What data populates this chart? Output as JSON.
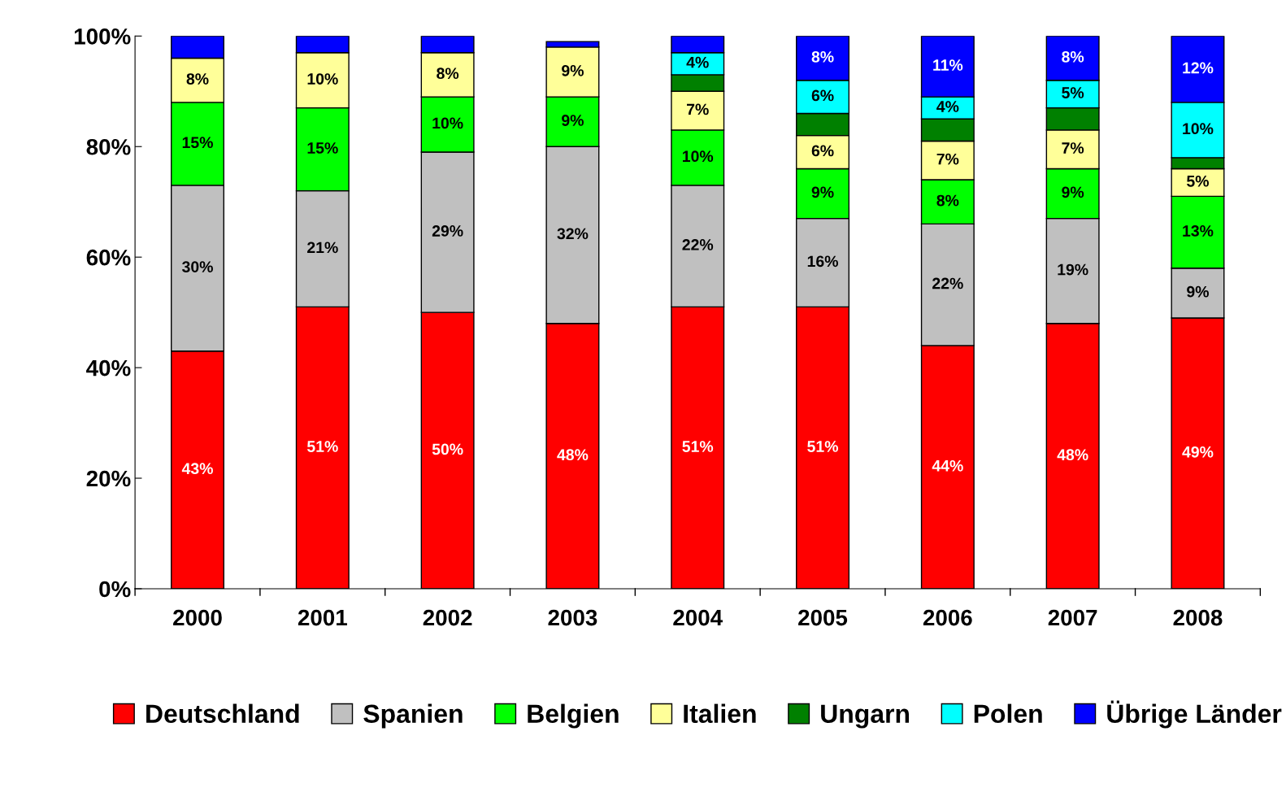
{
  "chart_data": {
    "type": "bar",
    "stacked": true,
    "categories": [
      "2000",
      "2001",
      "2002",
      "2003",
      "2004",
      "2005",
      "2006",
      "2007",
      "2008"
    ],
    "series": [
      {
        "name": "Deutschland",
        "color": "#ff0000",
        "values": [
          43,
          51,
          50,
          48,
          51,
          51,
          44,
          48,
          49
        ],
        "value_labels": [
          "43%",
          "51%",
          "50%",
          "48%",
          "51%",
          "51%",
          "44%",
          "48%",
          "49%"
        ]
      },
      {
        "name": "Spanien",
        "color": "#c0c0c0",
        "values": [
          30,
          21,
          29,
          32,
          22,
          16,
          22,
          19,
          9
        ],
        "value_labels": [
          "30%",
          "21%",
          "29%",
          "32%",
          "22%",
          "16%",
          "22%",
          "19%",
          "9%"
        ]
      },
      {
        "name": "Belgien",
        "color": "#00ff00",
        "values": [
          15,
          15,
          10,
          9,
          10,
          9,
          8,
          9,
          13
        ],
        "value_labels": [
          "15%",
          "15%",
          "10%",
          "9%",
          "10%",
          "9%",
          "8%",
          "9%",
          "13%"
        ]
      },
      {
        "name": "Italien",
        "color": "#ffff99",
        "values": [
          8,
          10,
          8,
          9,
          7,
          6,
          7,
          7,
          5
        ],
        "value_labels": [
          "8%",
          "10%",
          "8%",
          "9%",
          "7%",
          "6%",
          "7%",
          "7%",
          "5%"
        ]
      },
      {
        "name": "Ungarn",
        "color": "#008000",
        "values": [
          null,
          null,
          null,
          null,
          3,
          4,
          4,
          4,
          2
        ],
        "value_labels": [
          null,
          null,
          null,
          null,
          null,
          null,
          null,
          null,
          null
        ]
      },
      {
        "name": "Polen",
        "color": "#00ffff",
        "values": [
          null,
          null,
          null,
          null,
          4,
          6,
          4,
          5,
          10
        ],
        "value_labels": [
          null,
          null,
          null,
          null,
          "4%",
          "6%",
          "4%",
          "5%",
          "10%"
        ]
      },
      {
        "name": "Übrige Länder",
        "color": "#0000ff",
        "values": [
          4,
          3,
          3,
          1,
          3,
          8,
          11,
          8,
          12
        ],
        "value_labels": [
          null,
          null,
          null,
          null,
          null,
          "8%",
          "11%",
          "8%",
          "12%"
        ]
      }
    ],
    "ylim": [
      0,
      100
    ],
    "yticks": [
      {
        "value": 0,
        "label": "0%"
      },
      {
        "value": 20,
        "label": "20%"
      },
      {
        "value": 40,
        "label": "40%"
      },
      {
        "value": 60,
        "label": "60%"
      },
      {
        "value": 80,
        "label": "80%"
      },
      {
        "value": 100,
        "label": "100%"
      }
    ],
    "grid": false,
    "legend": "bottom"
  }
}
